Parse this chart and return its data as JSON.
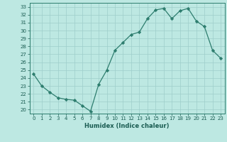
{
  "x": [
    0,
    1,
    2,
    3,
    4,
    5,
    6,
    7,
    8,
    9,
    10,
    11,
    12,
    13,
    14,
    15,
    16,
    17,
    18,
    19,
    20,
    21,
    22,
    23
  ],
  "y": [
    24.5,
    23.0,
    22.2,
    21.5,
    21.3,
    21.2,
    20.5,
    19.8,
    23.2,
    25.0,
    27.5,
    28.5,
    29.5,
    29.8,
    31.5,
    32.6,
    32.8,
    31.5,
    32.5,
    32.8,
    31.2,
    30.5,
    27.5,
    26.5
  ],
  "xlabel": "Humidex (Indice chaleur)",
  "ylim": [
    19.5,
    33.5
  ],
  "xlim": [
    -0.5,
    23.5
  ],
  "yticks": [
    20,
    21,
    22,
    23,
    24,
    25,
    26,
    27,
    28,
    29,
    30,
    31,
    32,
    33
  ],
  "xticks": [
    0,
    1,
    2,
    3,
    4,
    5,
    6,
    7,
    8,
    9,
    10,
    11,
    12,
    13,
    14,
    15,
    16,
    17,
    18,
    19,
    20,
    21,
    22,
    23
  ],
  "line_color": "#2d7d6e",
  "bg_color": "#bde8e2",
  "grid_color": "#9ececa",
  "text_color": "#1a5c52",
  "spine_color": "#2d7d6e"
}
